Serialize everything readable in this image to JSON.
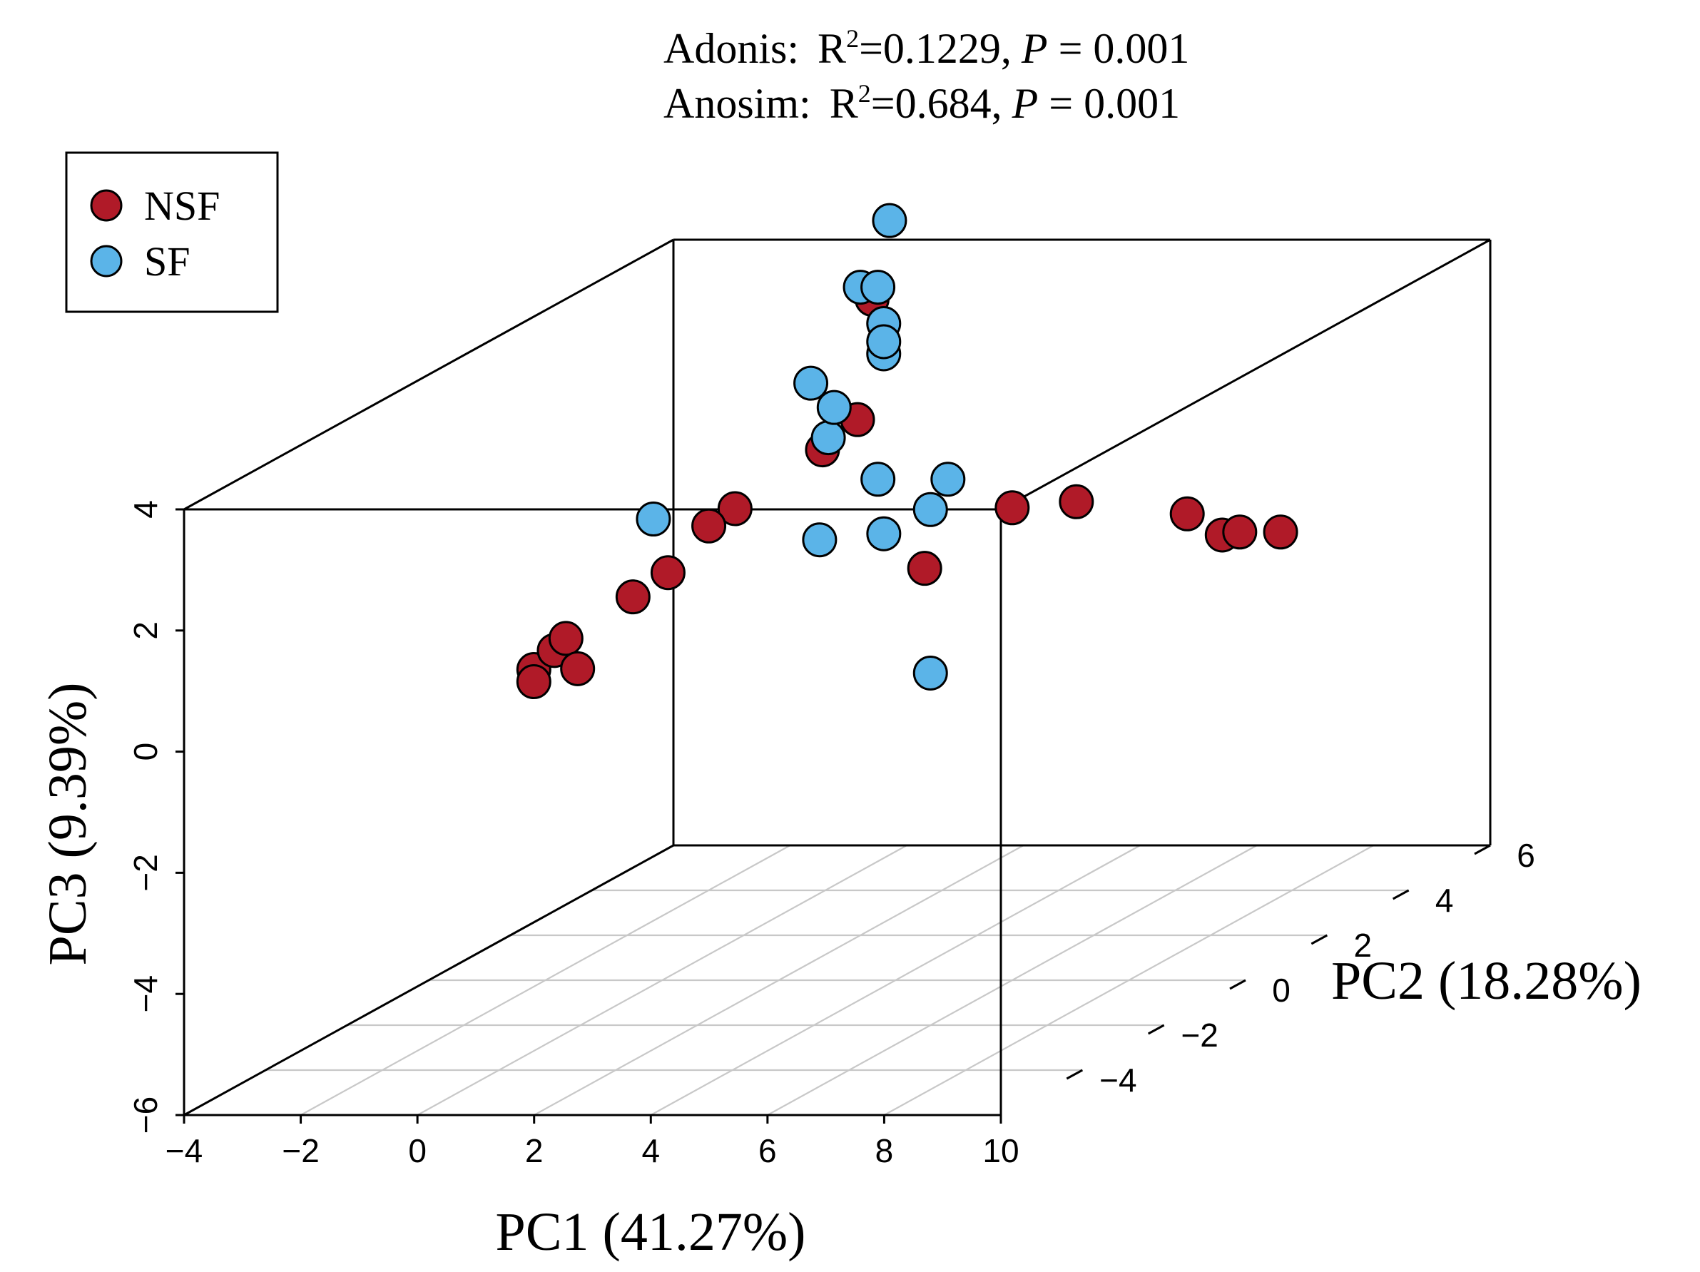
{
  "chart_data": {
    "type": "scatter",
    "title": "",
    "annotations": [
      {
        "label": "Adonis:",
        "stat": "R",
        "sup": "2",
        "stat_value": "=0.1229,",
        "p_label": "P",
        "p_value": " = 0.001"
      },
      {
        "label": "Anosim:",
        "stat": "R",
        "sup": "2",
        "stat_value": "=0.684,",
        "p_label": "P",
        "p_value": " = 0.001"
      }
    ],
    "xlabel": "PC1 (41.27%)",
    "ylabel": "PC2 (18.28%)",
    "zlabel": "PC3 (9.39%)",
    "xlim": [
      -4,
      10
    ],
    "ylim": [
      -6,
      6
    ],
    "zlim": [
      -6,
      4
    ],
    "xticks": [
      "−4",
      "−2",
      "0",
      "2",
      "4",
      "6",
      "8",
      "10"
    ],
    "yticks": [
      "−4",
      "−2",
      "0",
      "2",
      "4",
      "6"
    ],
    "zticks": [
      "−6",
      "−4",
      "−2",
      "0",
      "2",
      "4"
    ],
    "legend": {
      "position": "top-left",
      "entries": [
        "NSF",
        "SF"
      ]
    },
    "colors": {
      "NSF": "#b01a28",
      "SF": "#5bb4e8"
    },
    "series": [
      {
        "name": "NSF",
        "points": [
          {
            "x": -1.5,
            "y": -1.0,
            "z": -0.5
          },
          {
            "x": -1.5,
            "y": -1.0,
            "z": -0.7
          },
          {
            "x": -0.8,
            "y": -1.5,
            "z": 0.0
          },
          {
            "x": -0.6,
            "y": -1.5,
            "z": 0.2
          },
          {
            "x": -0.4,
            "y": -1.5,
            "z": -0.3
          },
          {
            "x": 0.2,
            "y": -1.0,
            "z": 0.7
          },
          {
            "x": 0.8,
            "y": -1.0,
            "z": 1.1
          },
          {
            "x": 0.8,
            "y": 0.0,
            "z": 1.5
          },
          {
            "x": 0.9,
            "y": 0.5,
            "z": 1.6
          },
          {
            "x": 1.7,
            "y": 1.5,
            "z": 2.2
          },
          {
            "x": 2.3,
            "y": 1.5,
            "z": 2.7
          },
          {
            "x": 2.2,
            "y": 2.0,
            "z": 4.5
          },
          {
            "x": 4.5,
            "y": 0.0,
            "z": 0.8
          },
          {
            "x": 6.0,
            "y": 0.0,
            "z": 1.8
          },
          {
            "x": 7.1,
            "y": 0.0,
            "z": 1.9
          },
          {
            "x": 9.0,
            "y": 0.0,
            "z": 1.7
          },
          {
            "x": 9.6,
            "y": 0.0,
            "z": 1.35
          },
          {
            "x": 9.9,
            "y": 0.0,
            "z": 1.4
          },
          {
            "x": 10.6,
            "y": 0.0,
            "z": 1.4
          }
        ]
      },
      {
        "name": "SF",
        "points": [
          {
            "x": 1.5,
            "y": 1.5,
            "z": 3.3
          },
          {
            "x": 1.8,
            "y": 1.5,
            "z": 2.4
          },
          {
            "x": 1.9,
            "y": 1.5,
            "z": 2.9
          },
          {
            "x": 2.0,
            "y": 2.0,
            "z": 4.7
          },
          {
            "x": 2.3,
            "y": 2.0,
            "z": 4.7
          },
          {
            "x": 2.4,
            "y": 2.0,
            "z": 4.1
          },
          {
            "x": 2.4,
            "y": 2.0,
            "z": 3.6
          },
          {
            "x": 2.4,
            "y": 2.0,
            "z": 3.8
          },
          {
            "x": 2.5,
            "y": 2.0,
            "z": 5.8
          },
          {
            "x": 2.0,
            "y": 1.0,
            "z": 0.9
          },
          {
            "x": 3.0,
            "y": 1.0,
            "z": 1.9
          },
          {
            "x": 3.1,
            "y": 1.0,
            "z": 1.0
          },
          {
            "x": 3.9,
            "y": 1.0,
            "z": 1.4
          },
          {
            "x": 4.2,
            "y": 1.0,
            "z": 1.9
          },
          {
            "x": 0.2,
            "y": -0.5,
            "z": 1.8
          },
          {
            "x": 3.9,
            "y": 1.0,
            "z": -1.3
          }
        ]
      }
    ]
  }
}
